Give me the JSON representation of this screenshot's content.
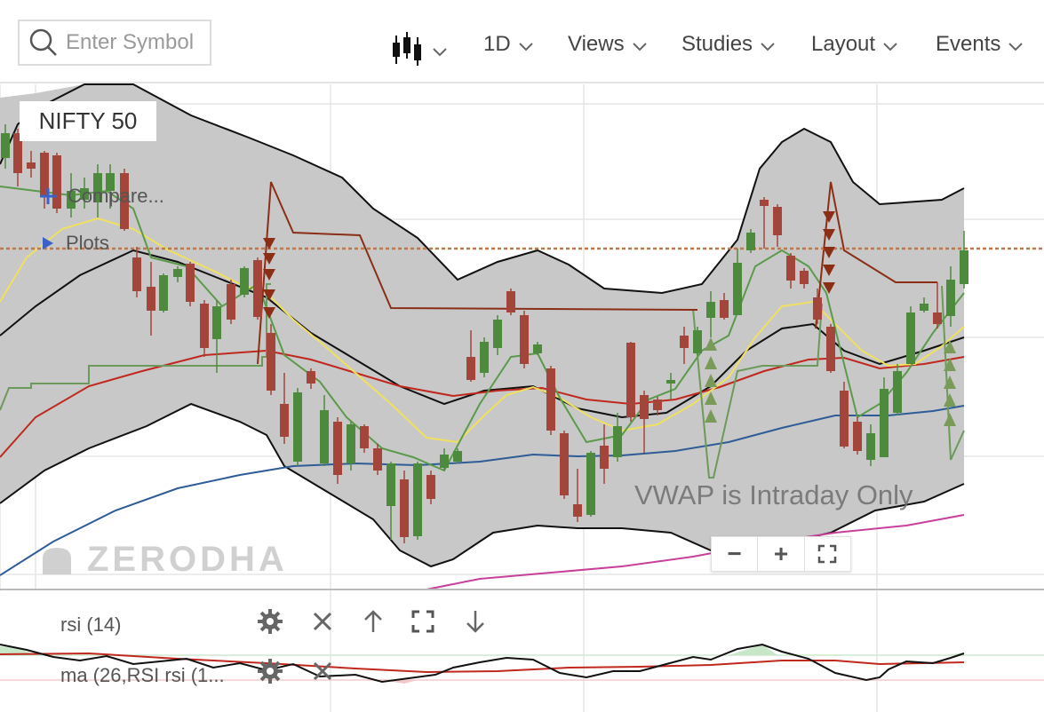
{
  "toolbar": {
    "search_placeholder": "Enter Symbol",
    "menus": [
      {
        "label": "1D"
      },
      {
        "label": "Views"
      },
      {
        "label": "Studies"
      },
      {
        "label": "Layout"
      },
      {
        "label": "Events"
      }
    ],
    "chart_type_icon": "candlestick-icon"
  },
  "chart": {
    "symbol": "NIFTY 50",
    "compare_label": "Compare...",
    "plots_label": "Plots",
    "vwap_notice": "VWAP is Intraday Only",
    "watermark": "ZERODHA",
    "zoom": {
      "minus": "−",
      "plus": "+",
      "fullscreen_icon": "fullscreen-icon"
    }
  },
  "panels": [
    {
      "label": "rsi (14)"
    },
    {
      "label": "ma (26,RSI rsi (1..."
    }
  ],
  "colors": {
    "up": "#4e8a3e",
    "down": "#a3453a",
    "band_fill": "#c8c8c8",
    "yellow_ma": "#f0e060",
    "red_ma": "#c0281e",
    "blue_ma": "#2e5c96",
    "magenta_ma": "#c8409a",
    "resistance": "#8b2e16",
    "support": "#6b9a5a",
    "price_line": "#c0784a"
  }
}
